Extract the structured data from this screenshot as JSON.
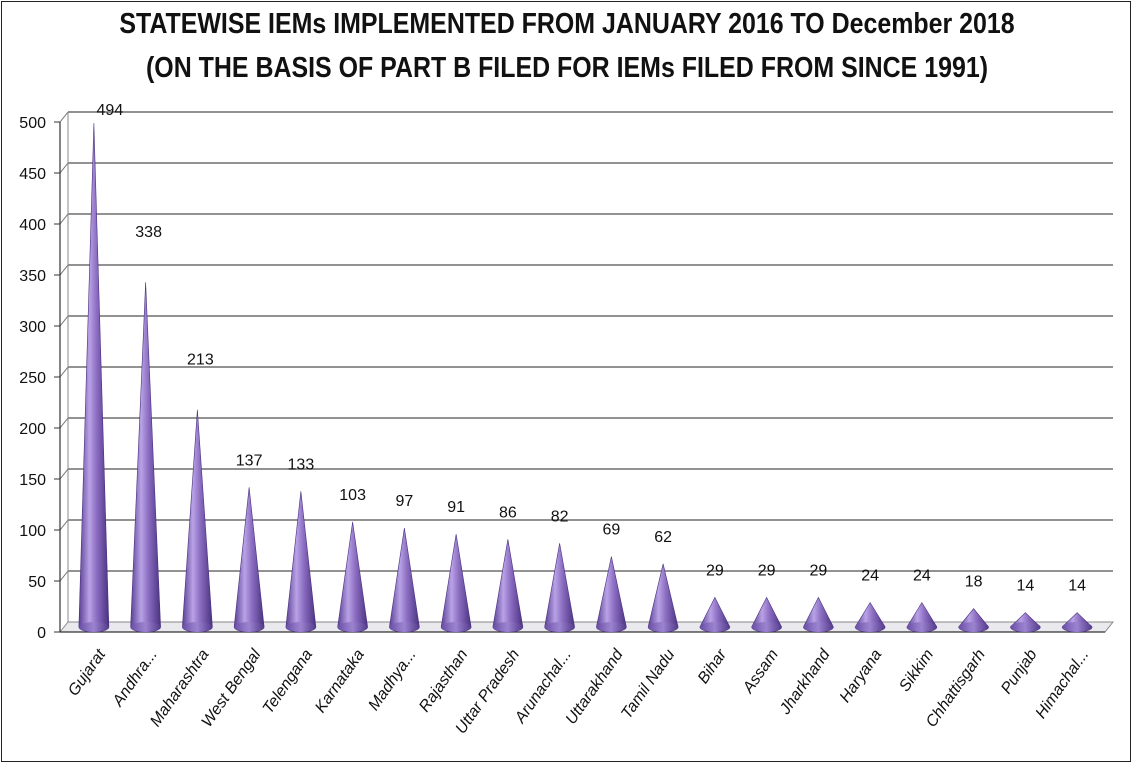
{
  "chart_data": {
    "type": "bar",
    "style": "3d-cone",
    "title": "STATEWISE IEMs IMPLEMENTED FROM JANUARY 2016  TO   December 2018",
    "subtitle": "(ON THE BASIS OF PART B FILED FOR IEMs FILED FROM SINCE 1991)",
    "xlabel": "",
    "ylabel": "",
    "ylim": [
      0,
      500
    ],
    "yticks": [
      0,
      50,
      100,
      150,
      200,
      250,
      300,
      350,
      400,
      450,
      500
    ],
    "grid": true,
    "legend": "none",
    "color": "#8a6cc0",
    "categories": [
      "Gujarat",
      "Andhra...",
      "Maharashtra",
      "West Bengal",
      "Telengana",
      "Karnataka",
      "Madhya...",
      "Rajasthan",
      "Uttar Pradesh",
      "Arunachal...",
      "Uttarakhand",
      "Tamil Nadu",
      "Bihar",
      "Assam",
      "Jharkhand",
      "Haryana",
      "Sikkim",
      "Chhattisgarh",
      "Punjab",
      "Himachal..."
    ],
    "values": [
      494,
      338,
      213,
      137,
      133,
      103,
      97,
      91,
      86,
      82,
      69,
      62,
      29,
      29,
      29,
      24,
      24,
      18,
      14,
      14
    ]
  }
}
